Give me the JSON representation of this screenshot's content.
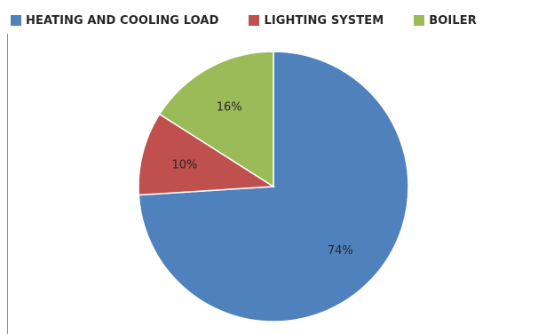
{
  "chart_data": {
    "type": "pie",
    "categories": [
      "HEATING AND COOLING LOAD",
      "LIGHTING SYSTEM",
      "BOILER"
    ],
    "values": [
      74,
      10,
      16
    ],
    "data_labels": [
      "74%",
      "10%",
      "16%"
    ],
    "colors": [
      "#4f81bd",
      "#c0504d",
      "#9bbb59"
    ],
    "legend_position": "top",
    "title": ""
  }
}
